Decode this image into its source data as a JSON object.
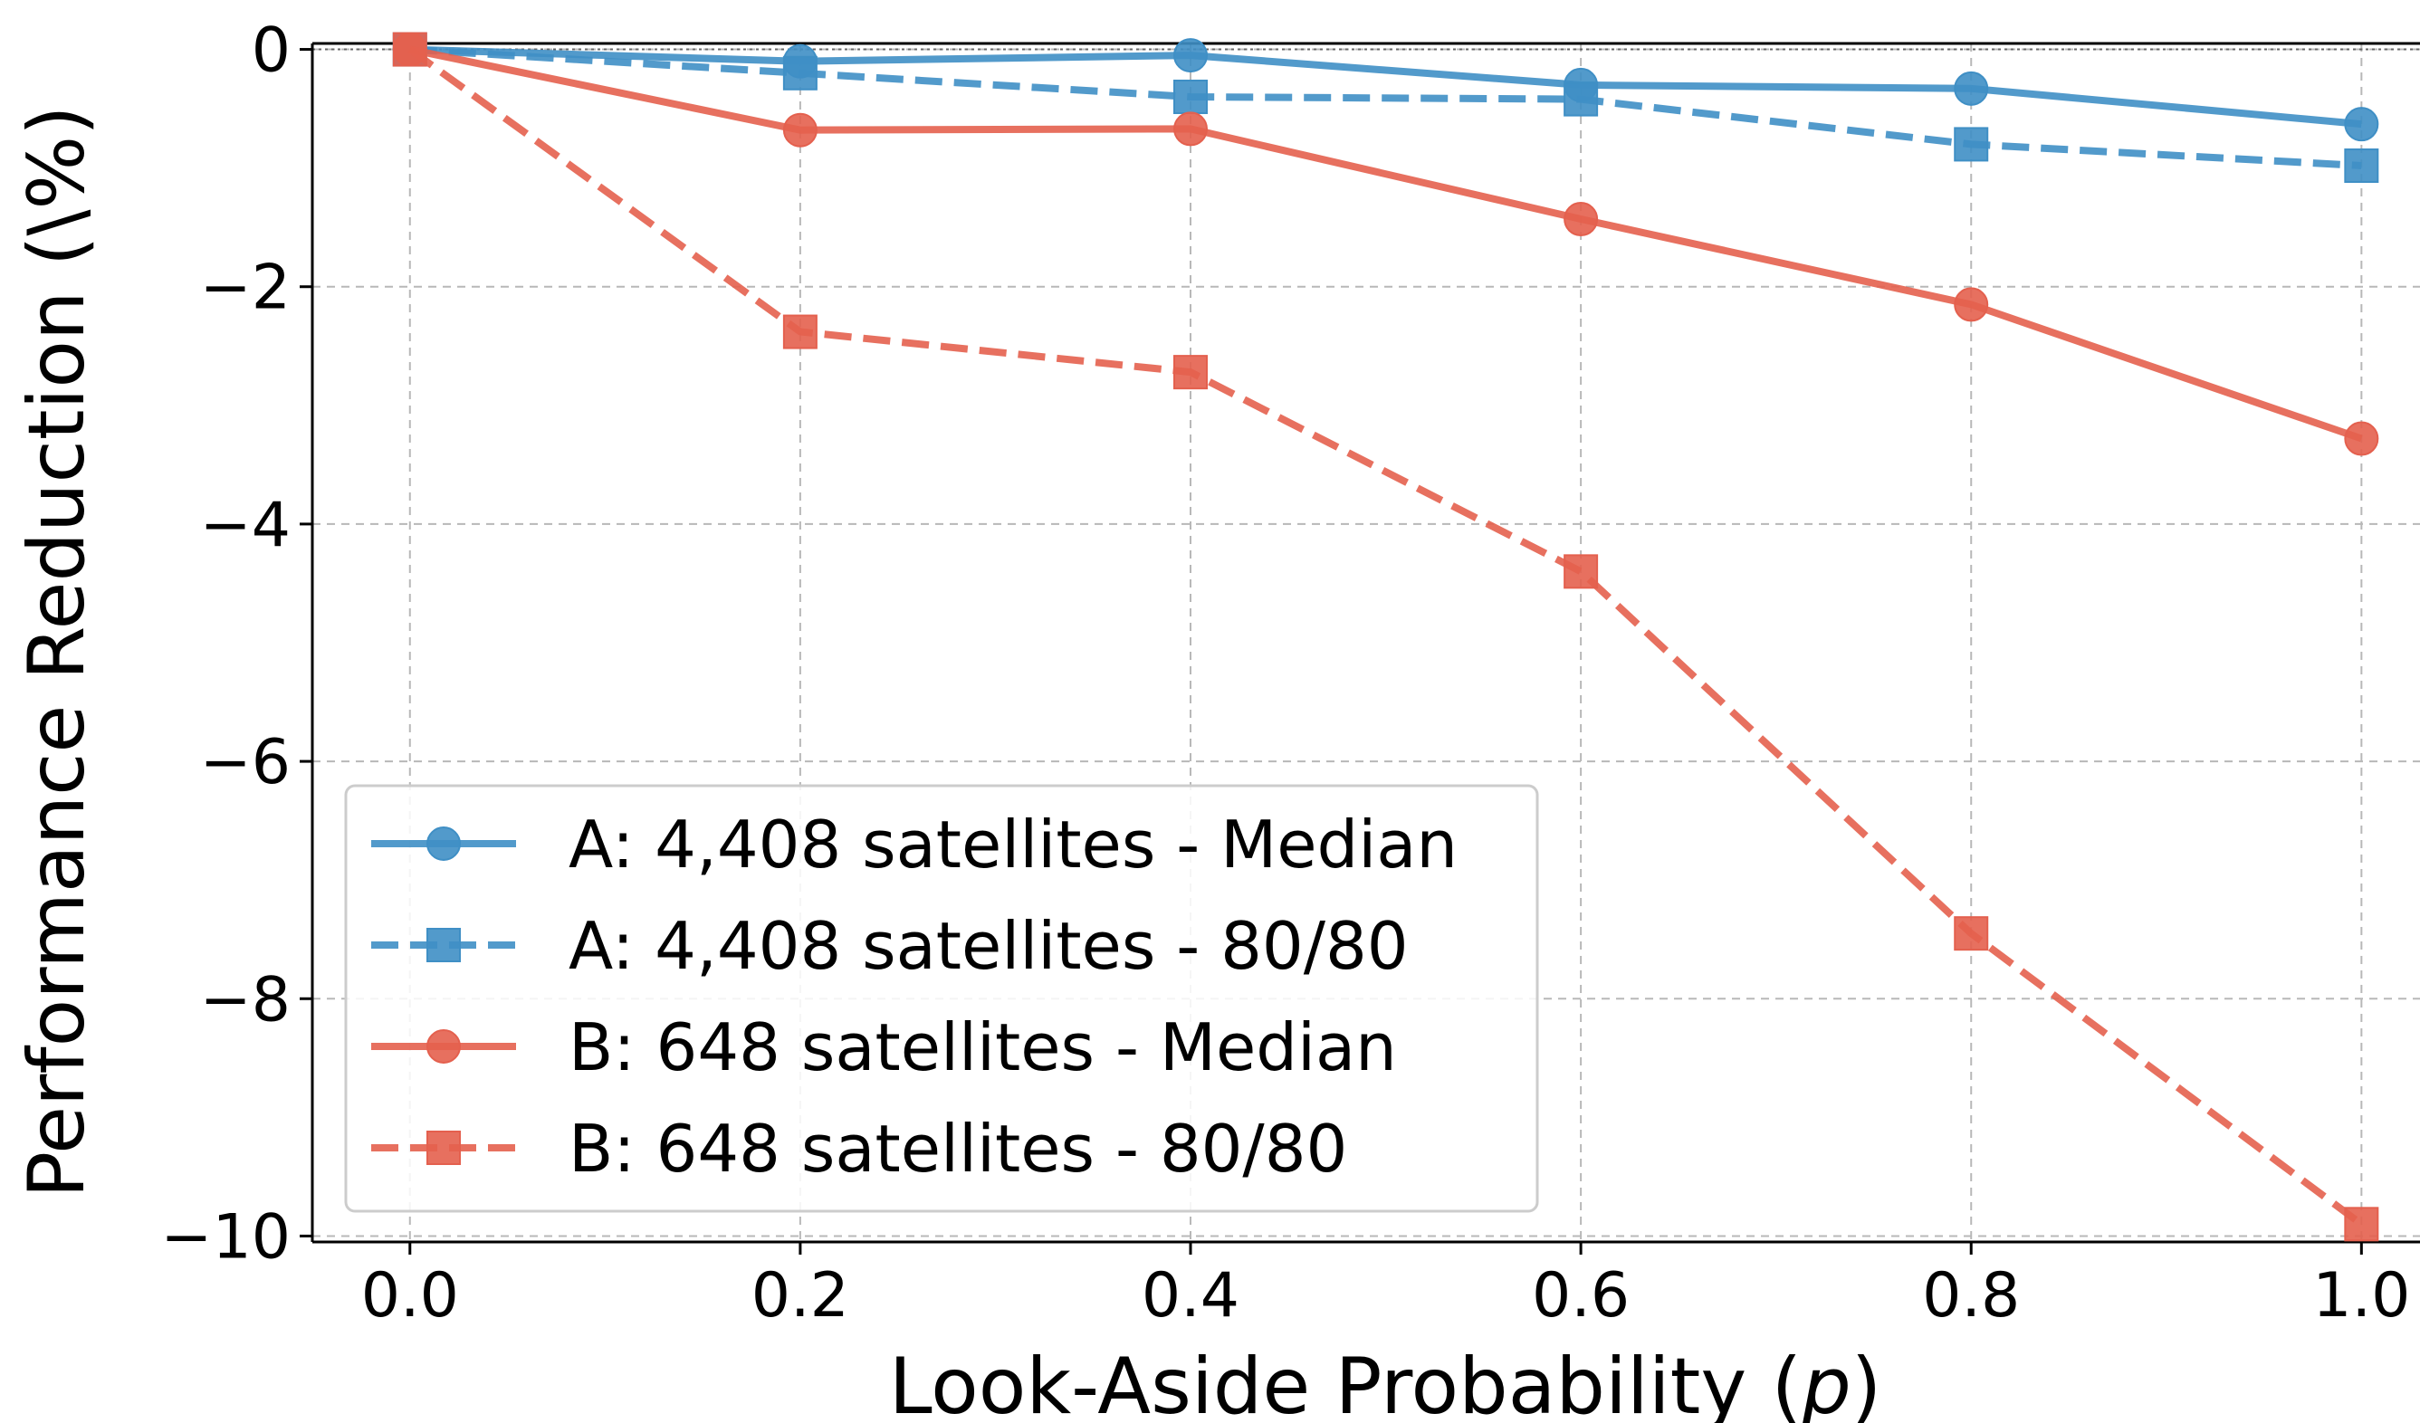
{
  "chart_data": {
    "type": "line",
    "title": "",
    "xlabel": "Look-Aside Probability (p)",
    "xlabel_main": "Look-Aside Probability (",
    "xlabel_var": "p",
    "xlabel_close": ")",
    "ylabel": "Performance Reduction (\\%)",
    "x": [
      0.0,
      0.2,
      0.4,
      0.6,
      0.8,
      1.0
    ],
    "x_tick_labels": [
      "0.0",
      "0.2",
      "0.4",
      "0.6",
      "0.8",
      "1.0"
    ],
    "y_ticks": [
      0,
      -2,
      -4,
      -6,
      -8,
      -10
    ],
    "y_tick_labels": [
      "0",
      "−2",
      "−4",
      "−6",
      "−8",
      "−10"
    ],
    "xlim": [
      -0.05,
      1.03
    ],
    "ylim": [
      -10.05,
      0.05
    ],
    "grid": true,
    "reference_line_y": 0,
    "legend_position": "lower-left",
    "series": [
      {
        "name": "A: 4,408 satellites - Median",
        "color": "#3f8fc5",
        "dash": "solid",
        "marker": "circle",
        "values": [
          0.0,
          -0.1,
          -0.05,
          -0.3,
          -0.33,
          -0.63
        ]
      },
      {
        "name": "A: 4,408 satellites - 80/80",
        "color": "#3f8fc5",
        "dash": "dashed",
        "marker": "square",
        "values": [
          0.0,
          -0.2,
          -0.4,
          -0.42,
          -0.8,
          -0.98
        ]
      },
      {
        "name": "B: 648 satellites - Median",
        "color": "#e4604e",
        "dash": "solid",
        "marker": "circle",
        "values": [
          0.0,
          -0.68,
          -0.67,
          -1.43,
          -2.15,
          -3.28
        ]
      },
      {
        "name": "B: 648 satellites - 80/80",
        "color": "#e4604e",
        "dash": "dashed",
        "marker": "square",
        "values": [
          0.0,
          -2.38,
          -2.72,
          -4.4,
          -7.45,
          -9.9
        ]
      }
    ]
  }
}
